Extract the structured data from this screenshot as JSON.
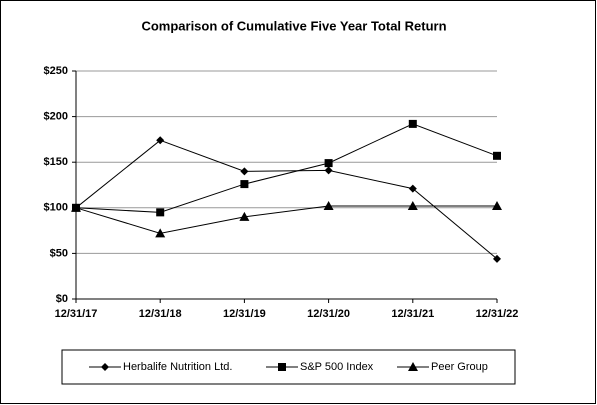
{
  "chart_data": {
    "type": "line",
    "title": "Comparison of Cumulative Five Year Total Return",
    "categories": [
      "12/31/17",
      "12/31/18",
      "12/31/19",
      "12/31/20",
      "12/31/21",
      "12/31/22"
    ],
    "series": [
      {
        "name": "Herbalife Nutrition Ltd.",
        "color": "#000000",
        "marker": "diamond",
        "values": [
          100,
          174,
          140,
          141,
          121,
          44
        ]
      },
      {
        "name": "S&P 500 Index",
        "color": "#000000",
        "marker": "square",
        "values": [
          100,
          95,
          126,
          149,
          192,
          157
        ]
      },
      {
        "name": "Peer Group",
        "color": "#000000",
        "marker": "triangle",
        "values": [
          100,
          72,
          90,
          102,
          102,
          102
        ]
      }
    ],
    "ylim": [
      0,
      250
    ],
    "yticks": [
      {
        "value": 0,
        "label": "$0"
      },
      {
        "value": 50,
        "label": "$50"
      },
      {
        "value": 100,
        "label": "$100"
      },
      {
        "value": 150,
        "label": "$150"
      },
      {
        "value": 200,
        "label": "$200"
      },
      {
        "value": 250,
        "label": "$250"
      }
    ],
    "grid": true,
    "legend": "bottom"
  }
}
